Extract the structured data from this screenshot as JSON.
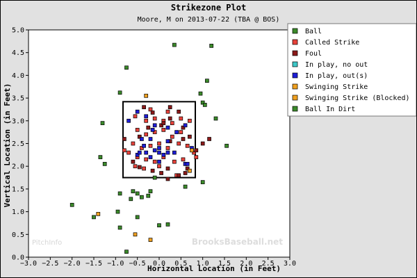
{
  "chart_data": {
    "type": "scatter",
    "title": "Strikezone Plot",
    "subtitle": "Moore, M on 2013-07-22 (TBA @ BOS)",
    "xlabel": "Horizontal Location (in Feet)",
    "ylabel": "Vertical Location (in Feet)",
    "xlim": [
      -3.0,
      3.0
    ],
    "ylim": [
      0.0,
      5.0
    ],
    "xticks": [
      "−3.0",
      "−2.5",
      "−2.0",
      "−1.5",
      "−1.0",
      "−0.5",
      "0.0",
      "0.5",
      "1.0",
      "1.5",
      "2.0",
      "2.5",
      "3.0"
    ],
    "yticks": [
      "0.0",
      "0.5",
      "1.0",
      "1.5",
      "2.0",
      "2.5",
      "3.0",
      "3.5",
      "4.0",
      "4.5",
      "5.0"
    ],
    "grid": false,
    "legend_position": "right",
    "strike_zone": {
      "x": [
        -0.83,
        0.83
      ],
      "y": [
        1.75,
        3.42
      ]
    },
    "watermarks": [
      "PitchInfo",
      "BrooksBaseball.net"
    ],
    "series": [
      {
        "name": "Ball",
        "color": "#3b8a2a",
        "points": [
          [
            0.35,
            4.67
          ],
          [
            1.2,
            4.65
          ],
          [
            -0.75,
            4.17
          ],
          [
            1.1,
            3.88
          ],
          [
            -0.9,
            3.62
          ],
          [
            0.95,
            3.6
          ],
          [
            1.0,
            3.4
          ],
          [
            1.05,
            3.35
          ],
          [
            1.3,
            3.05
          ],
          [
            -1.3,
            2.95
          ],
          [
            1.55,
            2.45
          ],
          [
            -1.35,
            2.2
          ],
          [
            -1.25,
            2.05
          ],
          [
            -0.9,
            1.4
          ],
          [
            -0.6,
            1.45
          ],
          [
            -0.5,
            1.4
          ],
          [
            -0.4,
            1.32
          ],
          [
            -0.65,
            1.28
          ],
          [
            -0.25,
            1.35
          ],
          [
            -0.2,
            1.45
          ],
          [
            -0.1,
            1.75
          ],
          [
            1.0,
            1.65
          ],
          [
            -2.0,
            1.15
          ],
          [
            -1.5,
            0.88
          ],
          [
            -0.9,
            0.65
          ],
          [
            -0.5,
            0.88
          ],
          [
            0.0,
            0.7
          ],
          [
            0.2,
            0.72
          ],
          [
            -0.75,
            0.12
          ],
          [
            0.6,
            1.55
          ],
          [
            -0.95,
            1.0
          ]
        ]
      },
      {
        "name": "Called Strike",
        "color": "#e8423a",
        "points": [
          [
            -0.55,
            3.1
          ],
          [
            -0.3,
            3.0
          ],
          [
            -0.1,
            3.05
          ],
          [
            0.1,
            3.0
          ],
          [
            0.3,
            2.95
          ],
          [
            0.5,
            3.05
          ],
          [
            0.7,
            3.0
          ],
          [
            -0.5,
            2.8
          ],
          [
            -0.3,
            2.7
          ],
          [
            -0.1,
            2.75
          ],
          [
            0.1,
            2.8
          ],
          [
            0.3,
            2.65
          ],
          [
            0.5,
            2.75
          ],
          [
            -0.6,
            2.5
          ],
          [
            -0.4,
            2.4
          ],
          [
            -0.2,
            2.45
          ],
          [
            0.0,
            2.5
          ],
          [
            0.2,
            2.4
          ],
          [
            0.45,
            2.5
          ],
          [
            0.65,
            2.45
          ],
          [
            -0.7,
            2.3
          ],
          [
            -0.5,
            2.2
          ],
          [
            -0.3,
            2.15
          ],
          [
            -0.1,
            2.1
          ],
          [
            0.1,
            2.2
          ],
          [
            0.35,
            2.1
          ],
          [
            0.55,
            2.15
          ],
          [
            -0.55,
            2.0
          ],
          [
            -0.35,
            1.95
          ],
          [
            0.0,
            2.0
          ],
          [
            0.8,
            2.3
          ],
          [
            0.85,
            2.2
          ],
          [
            -0.8,
            2.35
          ],
          [
            0.4,
            1.8
          ],
          [
            -0.2,
            3.25
          ],
          [
            0.2,
            3.2
          ]
        ]
      },
      {
        "name": "Foul",
        "color": "#8b1a1a",
        "points": [
          [
            -0.35,
            3.3
          ],
          [
            -0.15,
            3.18
          ],
          [
            0.25,
            3.3
          ],
          [
            0.45,
            3.2
          ],
          [
            -0.25,
            2.85
          ],
          [
            0.05,
            2.9
          ],
          [
            0.25,
            3.05
          ],
          [
            0.55,
            2.85
          ],
          [
            -0.45,
            2.65
          ],
          [
            0.25,
            2.55
          ],
          [
            0.55,
            2.6
          ],
          [
            -0.6,
            2.1
          ],
          [
            -0.45,
            1.98
          ],
          [
            -0.15,
            1.9
          ],
          [
            0.05,
            1.85
          ],
          [
            0.2,
            1.95
          ],
          [
            0.45,
            1.8
          ],
          [
            0.65,
            1.95
          ],
          [
            0.85,
            2.35
          ],
          [
            -0.8,
            2.6
          ],
          [
            0.7,
            2.65
          ],
          [
            1.0,
            2.5
          ],
          [
            1.15,
            2.6
          ],
          [
            0.2,
            1.72
          ],
          [
            0.6,
            1.85
          ],
          [
            0.1,
            2.95
          ]
        ]
      },
      {
        "name": "In play, no out",
        "color": "#3ec8c8",
        "points": []
      },
      {
        "name": "In play, out(s)",
        "color": "#1d1dd6",
        "points": [
          [
            -0.7,
            3.0
          ],
          [
            -0.5,
            3.2
          ],
          [
            -0.3,
            3.1
          ],
          [
            -0.1,
            2.9
          ],
          [
            0.2,
            2.85
          ],
          [
            0.6,
            2.9
          ],
          [
            -0.4,
            2.6
          ],
          [
            -0.2,
            2.6
          ],
          [
            0.0,
            2.4
          ],
          [
            0.2,
            2.55
          ],
          [
            -0.3,
            2.3
          ],
          [
            -0.1,
            2.35
          ],
          [
            0.0,
            2.3
          ],
          [
            0.1,
            2.25
          ],
          [
            0.2,
            2.3
          ],
          [
            -0.5,
            2.25
          ],
          [
            -0.2,
            2.2
          ],
          [
            0.0,
            2.1
          ],
          [
            0.6,
            2.05
          ],
          [
            -0.45,
            2.3
          ],
          [
            0.75,
            2.4
          ],
          [
            0.65,
            2.05
          ],
          [
            -0.35,
            2.45
          ],
          [
            0.35,
            2.3
          ],
          [
            -0.15,
            2.8
          ],
          [
            0.4,
            2.75
          ]
        ]
      },
      {
        "name": "Swinging Strike",
        "color": "#f0a020",
        "points": [
          [
            -0.3,
            3.55
          ],
          [
            0.75,
            2.35
          ],
          [
            0.7,
            1.9
          ],
          [
            -0.55,
            0.5
          ],
          [
            -1.4,
            0.95
          ],
          [
            -0.2,
            0.38
          ]
        ]
      },
      {
        "name": "Swinging Strike (Blocked)",
        "color": "#f0a020",
        "points": []
      },
      {
        "name": "Ball In Dirt",
        "color": "#3b8a2a",
        "points": []
      }
    ]
  }
}
